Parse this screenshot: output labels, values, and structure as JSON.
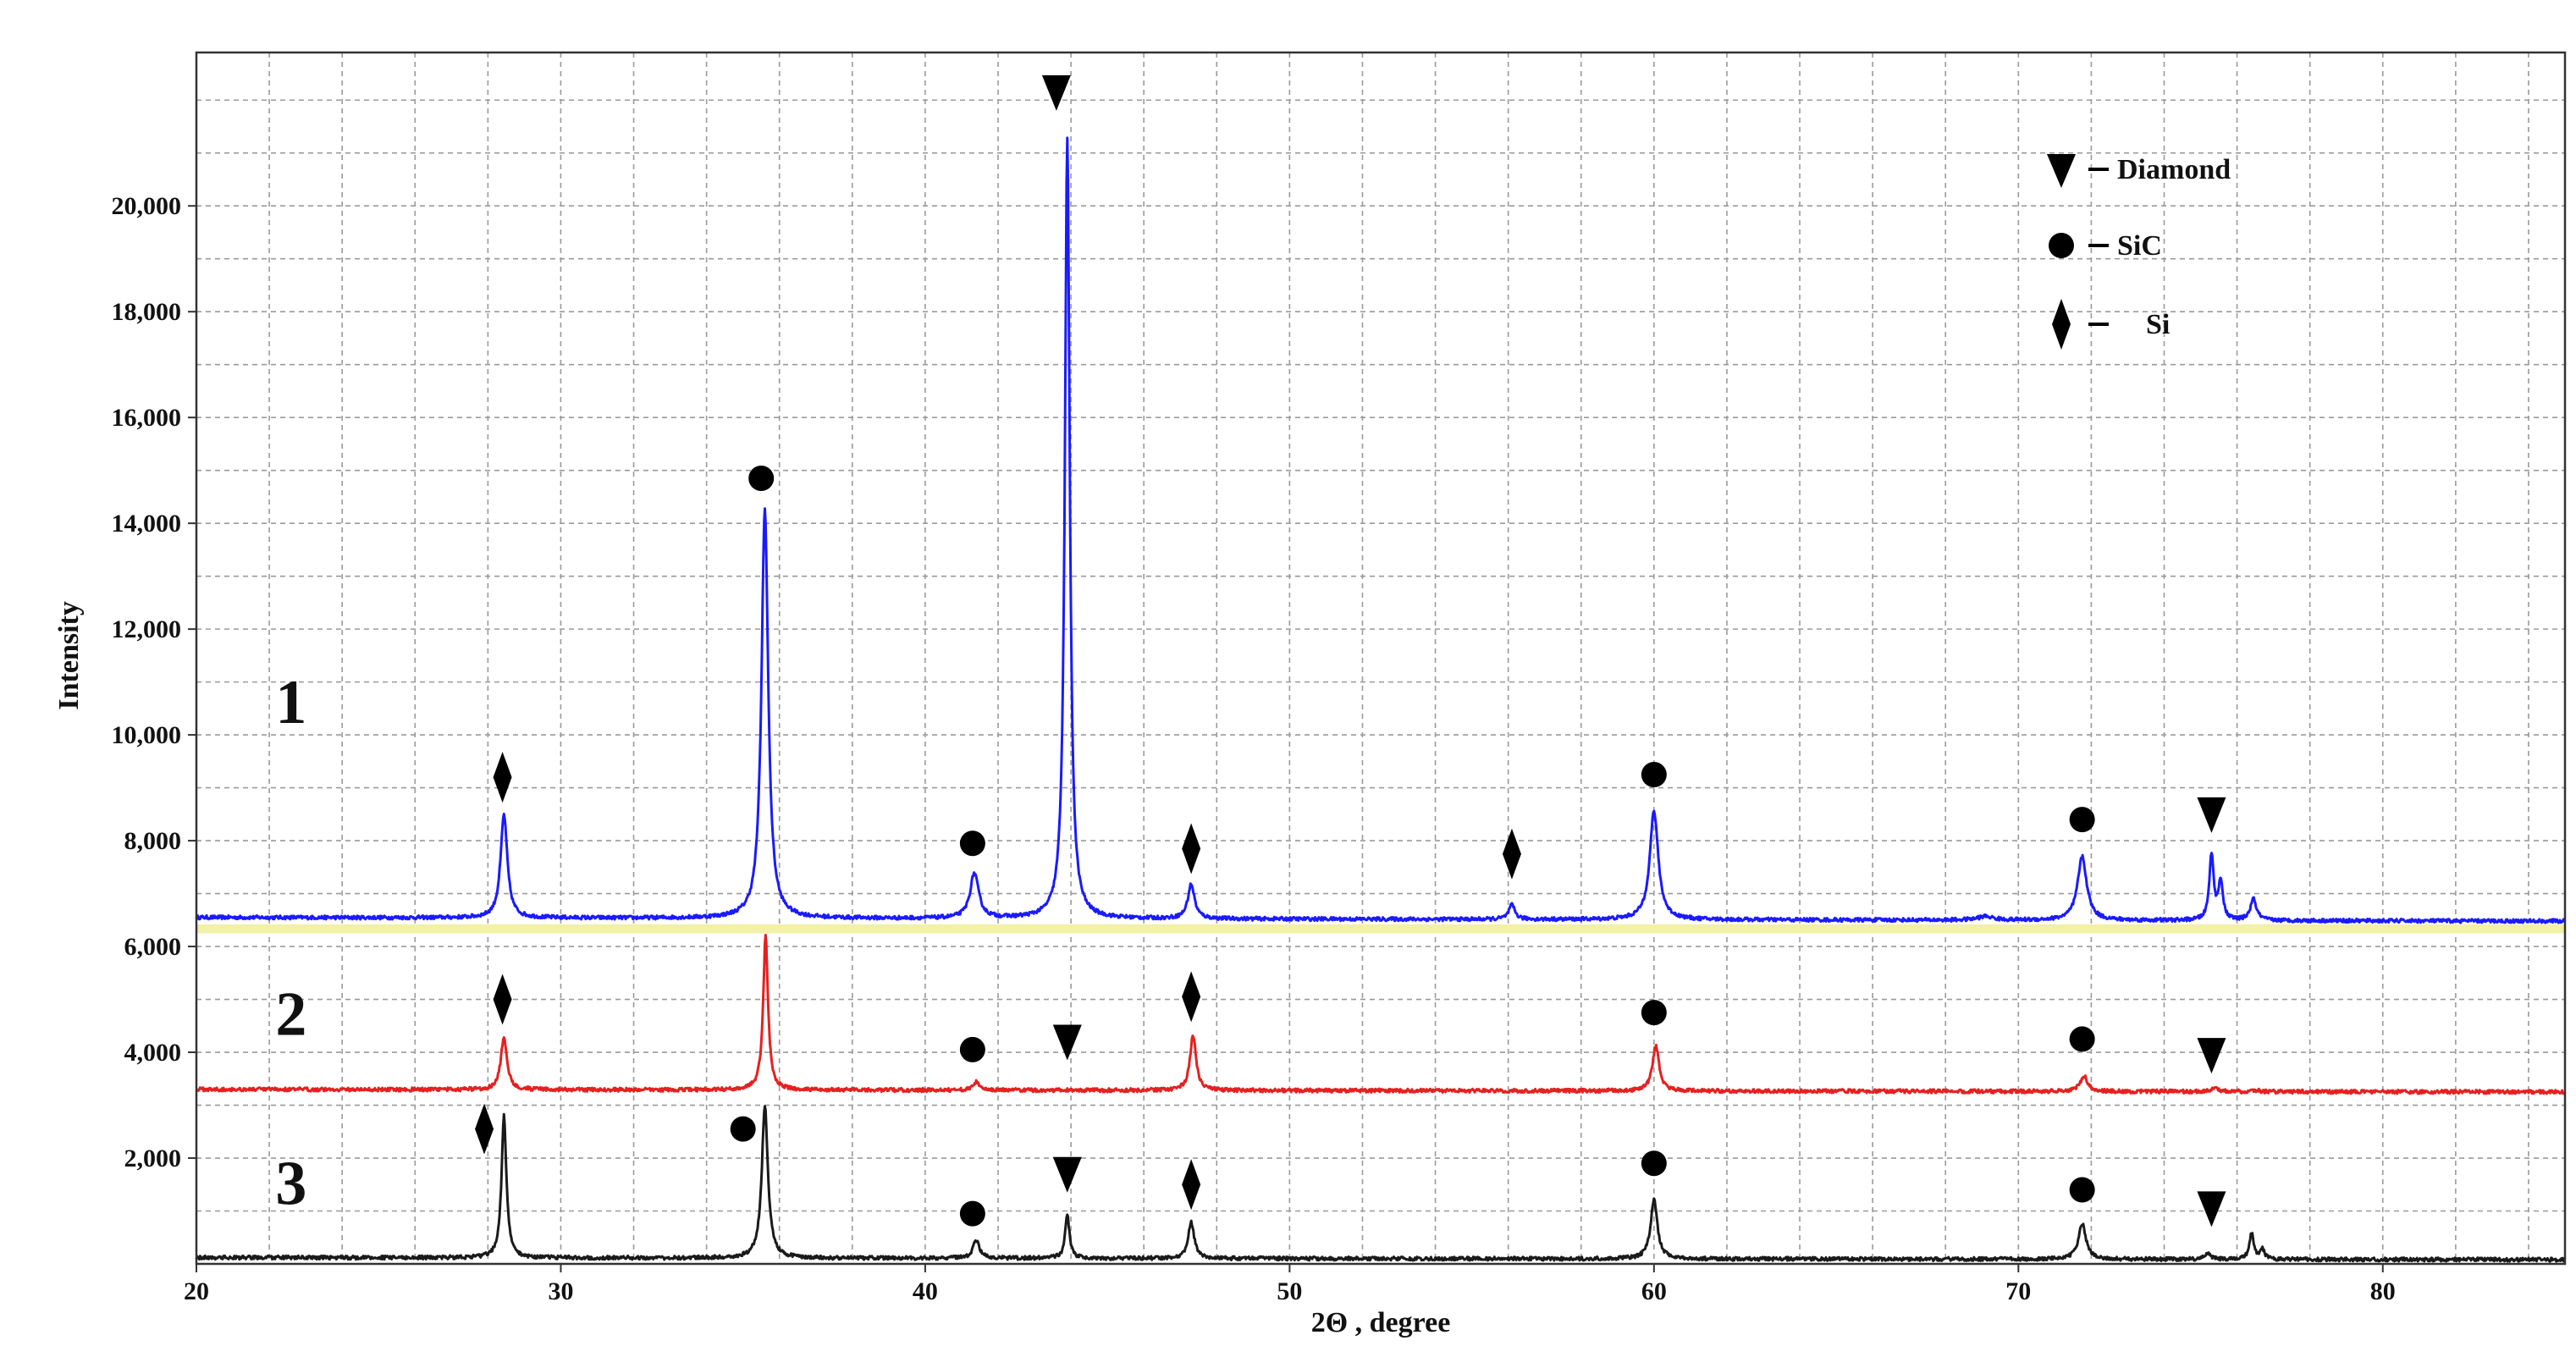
{
  "chart_data": {
    "type": "line",
    "title": "",
    "xlabel": "2Θ , degree",
    "ylabel": "Intensity",
    "xlim": [
      20,
      85
    ],
    "ylim": [
      0,
      22900
    ],
    "x_ticks": [
      20,
      30,
      40,
      50,
      60,
      70,
      80
    ],
    "y_ticks": [
      2000,
      4000,
      6000,
      8000,
      10000,
      12000,
      14000,
      16000,
      18000,
      20000
    ],
    "x_tick_labels": [
      "20",
      "30",
      "40",
      "50",
      "60",
      "70",
      "80"
    ],
    "y_tick_labels": [
      "2,000",
      "4,000",
      "6,000",
      "8,000",
      "10,000",
      "12,000",
      "14,000",
      "16,000",
      "18,000",
      "20,000"
    ],
    "grid": true,
    "legend_position": "top-right",
    "legend": [
      {
        "marker": "triangle-down",
        "label": "Diamond"
      },
      {
        "marker": "circle",
        "label": "SiC"
      },
      {
        "marker": "diamond",
        "label": "Si"
      }
    ],
    "series": [
      {
        "label": "1",
        "color": "#1a1aff",
        "baseline": 6550,
        "baseline_end": 6480,
        "peaks": [
          {
            "x": 28.44,
            "y": 8500,
            "w": 0.22
          },
          {
            "x": 35.6,
            "y": 14300,
            "w": 0.22
          },
          {
            "x": 41.35,
            "y": 7400,
            "w": 0.28
          },
          {
            "x": 43.9,
            "y": 21300,
            "w": 0.16
          },
          {
            "x": 47.3,
            "y": 7200,
            "w": 0.22
          },
          {
            "x": 56.1,
            "y": 6820,
            "w": 0.2
          },
          {
            "x": 60.0,
            "y": 8600,
            "w": 0.28
          },
          {
            "x": 69.1,
            "y": 6620,
            "w": 0.5
          },
          {
            "x": 71.75,
            "y": 7750,
            "w": 0.3
          },
          {
            "x": 75.3,
            "y": 7800,
            "w": 0.14
          },
          {
            "x": 75.55,
            "y": 7300,
            "w": 0.14
          },
          {
            "x": 76.45,
            "y": 6950,
            "w": 0.2
          }
        ]
      },
      {
        "label": "2",
        "color": "#e62020",
        "baseline": 3300,
        "baseline_end": 3250,
        "peaks": [
          {
            "x": 28.44,
            "y": 4300,
            "w": 0.2
          },
          {
            "x": 35.62,
            "y": 6200,
            "w": 0.16
          },
          {
            "x": 41.4,
            "y": 3450,
            "w": 0.22
          },
          {
            "x": 47.35,
            "y": 4350,
            "w": 0.2
          },
          {
            "x": 60.05,
            "y": 4150,
            "w": 0.22
          },
          {
            "x": 71.8,
            "y": 3600,
            "w": 0.24
          },
          {
            "x": 75.4,
            "y": 3380,
            "w": 0.2
          },
          {
            "x": 76.5,
            "y": 3330,
            "w": 0.2
          }
        ]
      },
      {
        "label": "3",
        "color": "#1a1a1a",
        "baseline": 120,
        "baseline_end": 80,
        "peaks": [
          {
            "x": 28.44,
            "y": 2800,
            "w": 0.16
          },
          {
            "x": 35.6,
            "y": 3000,
            "w": 0.2
          },
          {
            "x": 41.4,
            "y": 450,
            "w": 0.22
          },
          {
            "x": 43.9,
            "y": 950,
            "w": 0.14
          },
          {
            "x": 47.3,
            "y": 800,
            "w": 0.2
          },
          {
            "x": 60.0,
            "y": 1250,
            "w": 0.22
          },
          {
            "x": 71.75,
            "y": 800,
            "w": 0.24
          },
          {
            "x": 75.2,
            "y": 230,
            "w": 0.2
          },
          {
            "x": 76.4,
            "y": 620,
            "w": 0.14
          },
          {
            "x": 76.7,
            "y": 300,
            "w": 0.14
          }
        ]
      }
    ],
    "phase_markers": [
      {
        "series": "1",
        "type": "diamond",
        "x": 28.4,
        "y": 9200
      },
      {
        "series": "1",
        "type": "circle",
        "x": 35.5,
        "y": 14850
      },
      {
        "series": "1",
        "type": "circle",
        "x": 41.3,
        "y": 7950
      },
      {
        "series": "1",
        "type": "triangle-down",
        "x": 43.6,
        "y": 22150
      },
      {
        "series": "1",
        "type": "diamond",
        "x": 47.3,
        "y": 7850
      },
      {
        "series": "1",
        "type": "diamond",
        "x": 56.1,
        "y": 7750
      },
      {
        "series": "1",
        "type": "circle",
        "x": 60.0,
        "y": 9250
      },
      {
        "series": "1",
        "type": "circle",
        "x": 71.75,
        "y": 8400
      },
      {
        "series": "1",
        "type": "triangle-down",
        "x": 75.3,
        "y": 8500
      },
      {
        "series": "2",
        "type": "diamond",
        "x": 28.4,
        "y": 5000
      },
      {
        "series": "2",
        "type": "circle",
        "x": 41.3,
        "y": 4050
      },
      {
        "series": "2",
        "type": "triangle-down",
        "x": 43.9,
        "y": 4200
      },
      {
        "series": "2",
        "type": "diamond",
        "x": 47.3,
        "y": 5050
      },
      {
        "series": "2",
        "type": "circle",
        "x": 60.0,
        "y": 4750
      },
      {
        "series": "2",
        "type": "circle",
        "x": 71.75,
        "y": 4250
      },
      {
        "series": "2",
        "type": "triangle-down",
        "x": 75.3,
        "y": 3950
      },
      {
        "series": "3",
        "type": "diamond",
        "x": 27.9,
        "y": 2550
      },
      {
        "series": "3",
        "type": "circle",
        "x": 35.0,
        "y": 2550
      },
      {
        "series": "3",
        "type": "circle",
        "x": 41.3,
        "y": 950
      },
      {
        "series": "3",
        "type": "triangle-down",
        "x": 43.9,
        "y": 1700
      },
      {
        "series": "3",
        "type": "diamond",
        "x": 47.3,
        "y": 1500
      },
      {
        "series": "3",
        "type": "circle",
        "x": 60.0,
        "y": 1900
      },
      {
        "series": "3",
        "type": "circle",
        "x": 71.75,
        "y": 1400
      },
      {
        "series": "3",
        "type": "triangle-down",
        "x": 75.3,
        "y": 1050
      }
    ],
    "curve_labels": [
      {
        "text": "1",
        "x": 22.6,
        "y": 10500
      },
      {
        "text": "2",
        "x": 22.6,
        "y": 4600
      },
      {
        "text": "3",
        "x": 22.6,
        "y": 1400
      }
    ],
    "band": {
      "y0": 6250,
      "y1": 6420,
      "color": "#f3f0a8"
    }
  }
}
